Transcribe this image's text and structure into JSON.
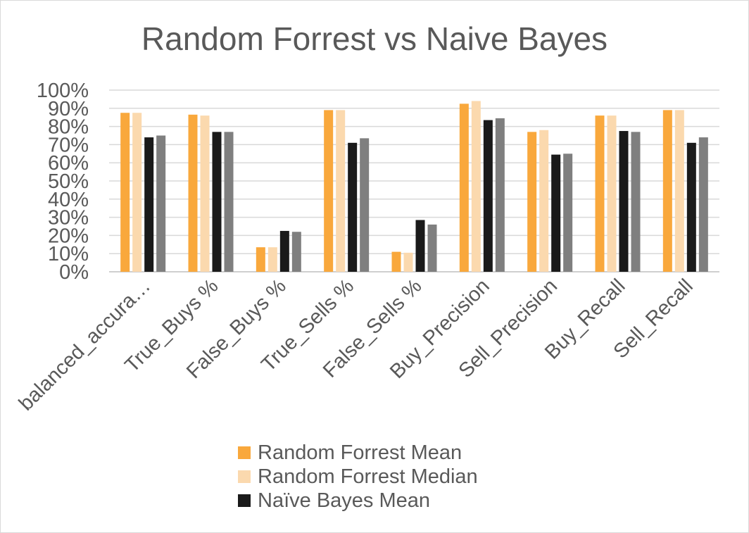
{
  "chart_data": {
    "type": "bar",
    "title": "Random Forrest vs Naive Bayes",
    "categories": [
      "balanced_accura…",
      "True_Buys %",
      "False_Buys %",
      "True_Sells %",
      "False_Sells %",
      "Buy_Precision",
      "Sell_Precision",
      "Buy_Recall",
      "Sell_Recall"
    ],
    "y_ticks": [
      "0%",
      "10%",
      "20%",
      "30%",
      "40%",
      "50%",
      "60%",
      "70%",
      "80%",
      "90%",
      "100%"
    ],
    "ylim": [
      0,
      1
    ],
    "grid": true,
    "legend_placement": "bottom",
    "series": [
      {
        "name": "Random Forrest Mean",
        "color": "#f9a83c",
        "values": [
          0.875,
          0.865,
          0.135,
          0.89,
          0.11,
          0.925,
          0.77,
          0.86,
          0.89
        ]
      },
      {
        "name": "Random Forrest Median",
        "color": "#fbd9ae",
        "values": [
          0.875,
          0.86,
          0.135,
          0.89,
          0.105,
          0.94,
          0.78,
          0.86,
          0.89
        ]
      },
      {
        "name": "Naïve Bayes Mean",
        "color": "#1a1a1a",
        "values": [
          0.74,
          0.77,
          0.225,
          0.71,
          0.285,
          0.835,
          0.645,
          0.775,
          0.71
        ]
      },
      {
        "name": "",
        "color": "#7f7f7f",
        "values": [
          0.75,
          0.77,
          0.22,
          0.735,
          0.26,
          0.845,
          0.65,
          0.77,
          0.74
        ]
      }
    ]
  }
}
